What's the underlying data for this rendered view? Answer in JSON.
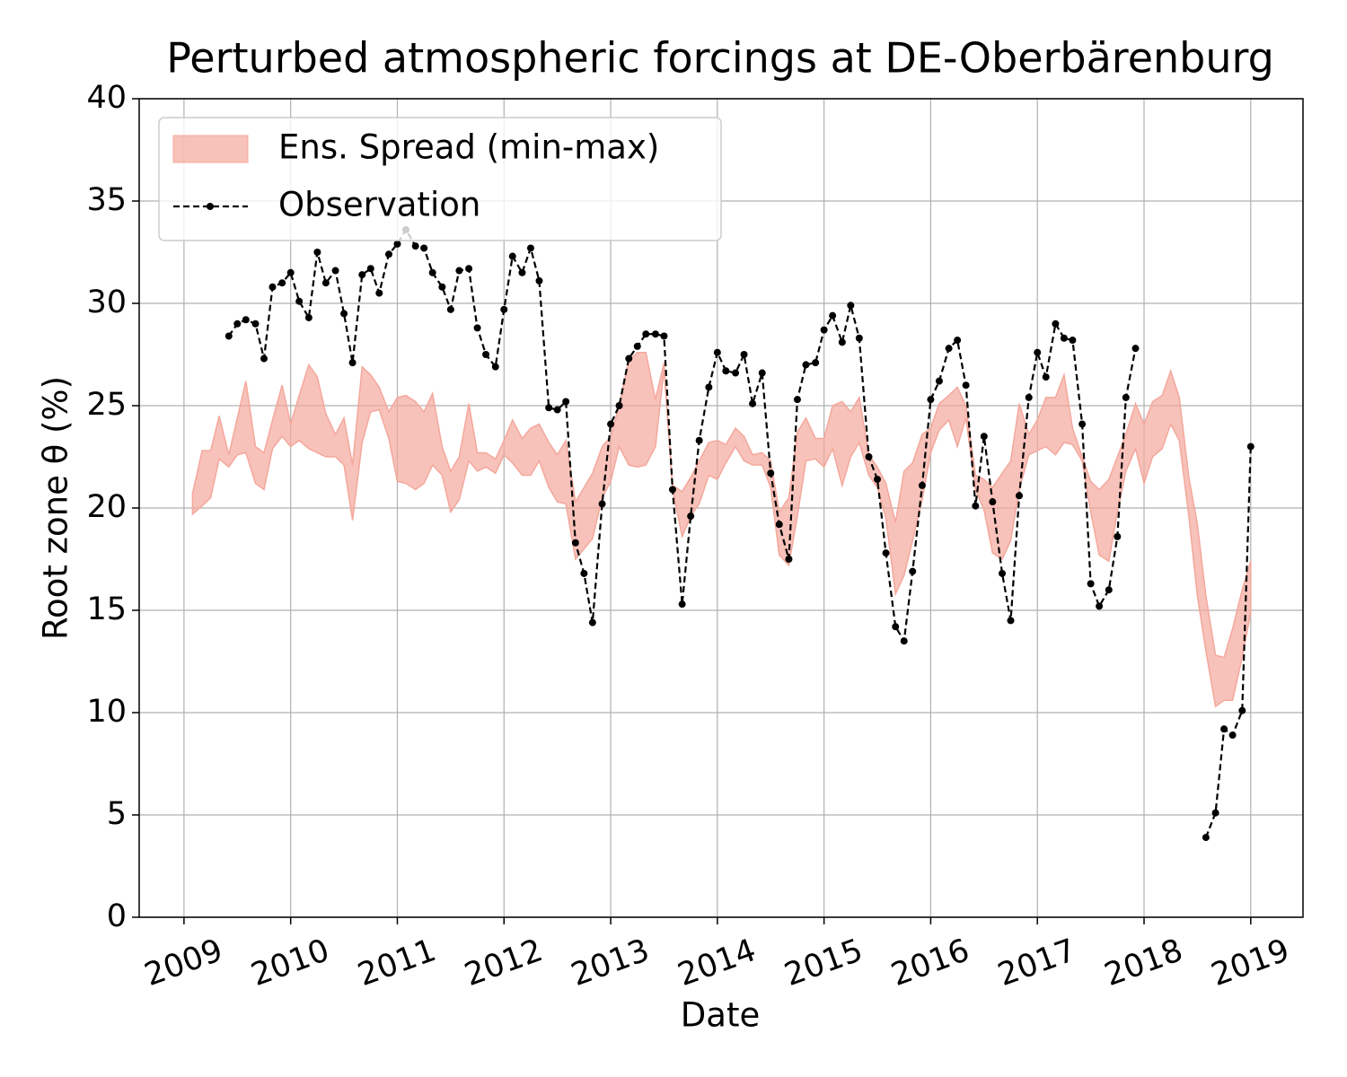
{
  "chart_data": {
    "type": "line",
    "title": "Perturbed atmospheric forcings at DE-Oberbärenburg",
    "x_label": "Date",
    "y_label": "Root zone θ  (%)",
    "xlim": [
      2008.58,
      2019.49
    ],
    "xticks": [
      2009,
      2010,
      2011,
      2012,
      2013,
      2014,
      2015,
      2016,
      2017,
      2018,
      2019
    ],
    "ylim": [
      0,
      40
    ],
    "yticks": [
      0,
      5,
      10,
      15,
      20,
      25,
      30,
      35,
      40
    ],
    "grid": true,
    "legend": "upper left",
    "x": [
      2009.08,
      2009.17,
      2009.25,
      2009.33,
      2009.42,
      2009.5,
      2009.58,
      2009.67,
      2009.75,
      2009.83,
      2009.92,
      2010,
      2010.08,
      2010.17,
      2010.25,
      2010.33,
      2010.42,
      2010.5,
      2010.58,
      2010.67,
      2010.75,
      2010.83,
      2010.92,
      2011,
      2011.08,
      2011.17,
      2011.25,
      2011.33,
      2011.42,
      2011.5,
      2011.58,
      2011.67,
      2011.75,
      2011.83,
      2011.92,
      2012,
      2012.08,
      2012.17,
      2012.25,
      2012.33,
      2012.42,
      2012.5,
      2012.58,
      2012.67,
      2012.75,
      2012.83,
      2012.92,
      2013,
      2013.08,
      2013.17,
      2013.25,
      2013.33,
      2013.42,
      2013.5,
      2013.58,
      2013.67,
      2013.75,
      2013.83,
      2013.92,
      2014,
      2014.08,
      2014.17,
      2014.25,
      2014.33,
      2014.42,
      2014.5,
      2014.58,
      2014.67,
      2014.75,
      2014.83,
      2014.92,
      2015,
      2015.08,
      2015.17,
      2015.25,
      2015.33,
      2015.42,
      2015.5,
      2015.58,
      2015.67,
      2015.75,
      2015.83,
      2015.92,
      2016,
      2016.08,
      2016.17,
      2016.25,
      2016.33,
      2016.42,
      2016.5,
      2016.58,
      2016.67,
      2016.75,
      2016.83,
      2016.92,
      2017,
      2017.08,
      2017.17,
      2017.25,
      2017.33,
      2017.42,
      2017.5,
      2017.58,
      2017.67,
      2017.75,
      2017.83,
      2017.92,
      2018,
      2018.08,
      2018.17,
      2018.25,
      2018.33,
      2018.42,
      2018.5,
      2018.58,
      2018.67,
      2018.75,
      2018.83,
      2018.92,
      2019
    ],
    "series": [
      {
        "name": "Ens. Spread (min-max)",
        "kind": "band",
        "color": "#f4a89c",
        "lower": [
          19.7,
          20.1,
          20.5,
          22.4,
          22.0,
          22.6,
          22.7,
          21.2,
          20.9,
          22.9,
          23.5,
          23.0,
          23.3,
          22.9,
          22.7,
          22.5,
          22.5,
          22.1,
          19.4,
          23.2,
          24.7,
          24.8,
          23.4,
          21.3,
          21.2,
          20.9,
          21.2,
          22.1,
          21.6,
          19.8,
          20.4,
          22.3,
          21.8,
          22.0,
          21.7,
          22.6,
          22.2,
          21.6,
          21.6,
          22.3,
          21.0,
          20.3,
          20.2,
          17.5,
          18.0,
          18.5,
          20.5,
          21.3,
          23.0,
          22.1,
          22.0,
          22.1,
          23.0,
          26.8,
          20.9,
          18.6,
          19.6,
          20.2,
          21.6,
          21.4,
          22.2,
          23.0,
          22.3,
          22.1,
          22.1,
          21.0,
          17.7,
          17.2,
          19.6,
          22.3,
          22.4,
          22.0,
          22.9,
          21.1,
          22.5,
          23.2,
          21.6,
          21.0,
          19.5,
          15.8,
          16.7,
          18.4,
          20.4,
          22.7,
          23.8,
          24.3,
          23.0,
          24.4,
          20.9,
          19.9,
          17.8,
          17.5,
          18.4,
          20.9,
          22.6,
          22.8,
          23.0,
          22.6,
          23.2,
          23.1,
          22.3,
          19.8,
          17.7,
          17.4,
          19.8,
          21.8,
          22.9,
          21.2,
          22.5,
          22.9,
          24.1,
          23.3,
          19.6,
          15.7,
          13.0,
          10.3,
          10.6,
          10.6,
          12.7,
          14.9
        ],
        "upper": [
          20.7,
          22.8,
          22.8,
          24.5,
          22.6,
          24.4,
          26.2,
          23.0,
          22.7,
          24.3,
          26.0,
          24.1,
          25.5,
          27.0,
          26.4,
          24.6,
          23.6,
          24.4,
          22.1,
          26.9,
          26.5,
          25.9,
          24.7,
          25.4,
          25.5,
          25.2,
          24.7,
          25.6,
          23.0,
          21.8,
          22.5,
          25.1,
          22.7,
          22.7,
          22.4,
          23.3,
          24.3,
          23.4,
          23.9,
          24.1,
          23.2,
          22.6,
          23.3,
          20.3,
          21.0,
          21.7,
          23.0,
          23.5,
          25.0,
          27.2,
          27.6,
          27.6,
          25.3,
          27.1,
          21.1,
          20.8,
          21.5,
          22.3,
          23.2,
          23.3,
          23.1,
          23.9,
          23.5,
          22.6,
          22.7,
          22.3,
          19.8,
          20.5,
          23.7,
          24.4,
          23.4,
          23.4,
          25.0,
          25.2,
          24.7,
          25.4,
          22.6,
          22.0,
          21.2,
          19.3,
          21.8,
          22.2,
          23.6,
          23.9,
          25.1,
          25.5,
          25.9,
          25.0,
          21.6,
          21.4,
          21.0,
          21.7,
          22.3,
          25.1,
          23.6,
          24.3,
          25.4,
          25.4,
          26.5,
          23.9,
          22.5,
          21.3,
          20.9,
          21.4,
          22.5,
          23.6,
          25.1,
          24.1,
          25.2,
          25.5,
          26.7,
          25.4,
          21.5,
          19.2,
          15.7,
          12.8,
          12.7,
          14.1,
          16.0,
          17.4
        ]
      },
      {
        "name": "Observation",
        "kind": "line",
        "color": "#000000",
        "dashed": true,
        "marker": true,
        "values": [
          null,
          null,
          null,
          null,
          28.4,
          29.0,
          29.2,
          29.0,
          27.3,
          30.8,
          31.0,
          31.5,
          30.1,
          29.3,
          32.5,
          31.0,
          31.6,
          29.5,
          27.1,
          31.4,
          31.7,
          30.5,
          32.4,
          32.9,
          33.6,
          32.8,
          32.7,
          31.5,
          30.8,
          29.7,
          31.6,
          31.7,
          28.8,
          27.5,
          26.9,
          29.7,
          32.3,
          31.5,
          32.7,
          31.1,
          24.9,
          24.8,
          25.2,
          18.3,
          16.8,
          14.4,
          20.2,
          24.1,
          25.0,
          27.3,
          27.9,
          28.5,
          28.5,
          28.4,
          20.9,
          15.3,
          19.6,
          23.3,
          25.9,
          27.6,
          26.7,
          26.6,
          27.5,
          25.1,
          26.6,
          21.7,
          19.2,
          17.5,
          25.3,
          27.0,
          27.1,
          28.7,
          29.4,
          28.1,
          29.9,
          28.3,
          22.5,
          21.4,
          17.8,
          14.2,
          13.5,
          16.9,
          21.1,
          25.3,
          26.2,
          27.8,
          28.2,
          26.0,
          20.1,
          23.5,
          20.3,
          16.8,
          14.5,
          20.6,
          25.4,
          27.6,
          26.4,
          29.0,
          28.3,
          28.2,
          24.1,
          16.3,
          15.2,
          16.0,
          18.6,
          25.4,
          27.8,
          null,
          null,
          null,
          null,
          null,
          null,
          null,
          3.9,
          5.1,
          9.2,
          8.9,
          10.1,
          23.0
        ]
      }
    ]
  }
}
